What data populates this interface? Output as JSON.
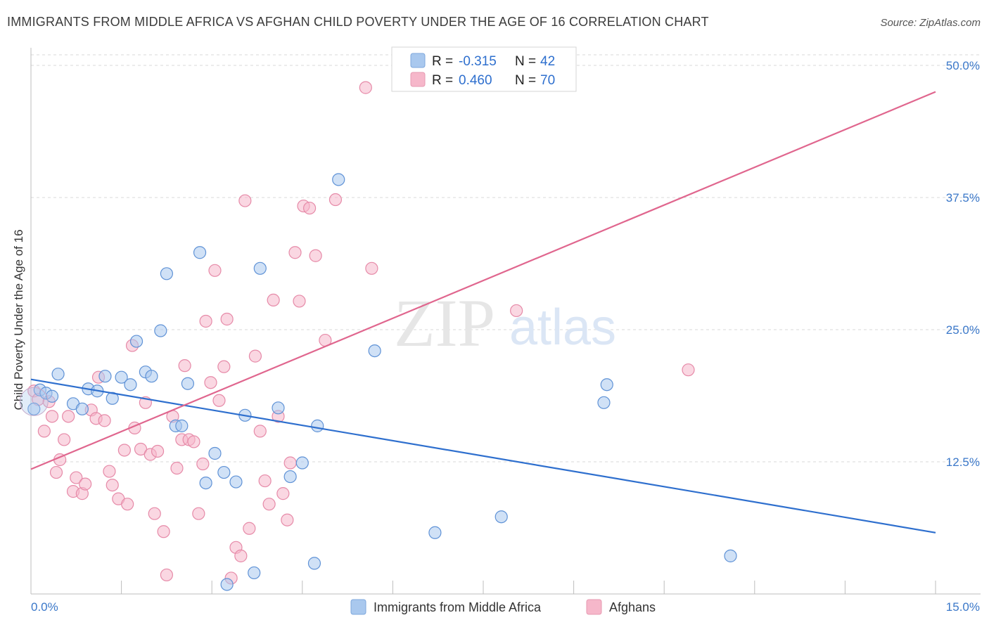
{
  "title": "IMMIGRANTS FROM MIDDLE AFRICA VS AFGHAN CHILD POVERTY UNDER THE AGE OF 16 CORRELATION CHART",
  "source": "Source: ZipAtlas.com",
  "colors": {
    "blue": "#2e6fce",
    "blue_fill": "#a9c8ee",
    "pink": "#e0668e",
    "pink_fill": "#f6b7ca",
    "grid": "#d9d9d9",
    "tick_text": "#3b78c9"
  },
  "legend_top": [
    {
      "r_label": "R = ",
      "r_value": "-0.315",
      "n_label": "N = ",
      "n_value": "42"
    },
    {
      "r_label": "R = ",
      "r_value": "0.460",
      "n_label": "N = ",
      "n_value": "70"
    }
  ],
  "watermark": {
    "zip": "ZIP",
    "atlas": "atlas"
  },
  "chart_data": {
    "type": "scatter",
    "title": "IMMIGRANTS FROM MIDDLE AFRICA VS AFGHAN CHILD POVERTY UNDER THE AGE OF 16 CORRELATION CHART",
    "xlabel": "",
    "ylabel": "Child Poverty Under the Age of 16",
    "xlim": [
      0,
      15
    ],
    "ylim": [
      0,
      51
    ],
    "x_tick_labels": [
      "0.0%",
      "15.0%"
    ],
    "y_ticks": [
      12.5,
      25.0,
      37.5,
      50.0
    ],
    "y_tick_labels": [
      "12.5%",
      "25.0%",
      "37.5%",
      "50.0%"
    ],
    "grid": true,
    "legend_placement": "top-center and bottom",
    "series": [
      {
        "name": "Immigrants from Middle Africa",
        "r": -0.315,
        "n": 42,
        "trend": {
          "x": [
            0,
            15
          ],
          "y": [
            20.3,
            5.8
          ]
        },
        "points": [
          [
            0.05,
            17.5
          ],
          [
            0.15,
            19.3
          ],
          [
            0.25,
            19.0
          ],
          [
            0.35,
            18.7
          ],
          [
            0.45,
            20.8
          ],
          [
            0.7,
            18.0
          ],
          [
            0.85,
            17.5
          ],
          [
            0.95,
            19.4
          ],
          [
            1.1,
            19.2
          ],
          [
            1.23,
            20.6
          ],
          [
            1.35,
            18.5
          ],
          [
            1.5,
            20.5
          ],
          [
            1.65,
            19.8
          ],
          [
            1.75,
            23.9
          ],
          [
            1.9,
            21.0
          ],
          [
            2.0,
            20.6
          ],
          [
            2.15,
            24.9
          ],
          [
            2.25,
            30.3
          ],
          [
            2.4,
            15.9
          ],
          [
            2.5,
            15.9
          ],
          [
            2.6,
            19.9
          ],
          [
            2.8,
            32.3
          ],
          [
            2.9,
            10.5
          ],
          [
            3.05,
            13.3
          ],
          [
            3.2,
            11.5
          ],
          [
            3.25,
            0.9
          ],
          [
            3.4,
            10.6
          ],
          [
            3.55,
            16.9
          ],
          [
            3.7,
            2.0
          ],
          [
            3.8,
            30.8
          ],
          [
            4.1,
            17.6
          ],
          [
            4.3,
            11.1
          ],
          [
            4.5,
            12.4
          ],
          [
            4.7,
            2.9
          ],
          [
            4.75,
            15.9
          ],
          [
            5.1,
            39.2
          ],
          [
            5.7,
            23.0
          ],
          [
            6.7,
            5.8
          ],
          [
            7.8,
            7.3
          ],
          [
            9.5,
            18.1
          ],
          [
            9.55,
            19.8
          ],
          [
            11.6,
            3.6
          ]
        ]
      },
      {
        "name": "Afghans",
        "r": 0.46,
        "n": 70,
        "trend": {
          "x": [
            0,
            15
          ],
          "y": [
            11.8,
            47.5
          ]
        },
        "points": [
          [
            0.05,
            19.2
          ],
          [
            0.12,
            18.4
          ],
          [
            0.22,
            15.4
          ],
          [
            0.35,
            16.8
          ],
          [
            0.42,
            11.5
          ],
          [
            0.48,
            12.7
          ],
          [
            0.55,
            14.6
          ],
          [
            0.62,
            16.8
          ],
          [
            0.7,
            9.7
          ],
          [
            0.75,
            11.0
          ],
          [
            0.85,
            9.5
          ],
          [
            0.9,
            10.4
          ],
          [
            1.0,
            17.4
          ],
          [
            1.08,
            16.6
          ],
          [
            1.12,
            20.5
          ],
          [
            1.22,
            16.4
          ],
          [
            1.3,
            11.6
          ],
          [
            1.35,
            10.3
          ],
          [
            1.45,
            9.0
          ],
          [
            1.55,
            13.6
          ],
          [
            1.6,
            8.5
          ],
          [
            1.68,
            23.5
          ],
          [
            1.72,
            15.7
          ],
          [
            1.82,
            13.7
          ],
          [
            1.9,
            18.1
          ],
          [
            1.98,
            13.2
          ],
          [
            2.05,
            7.6
          ],
          [
            2.1,
            13.5
          ],
          [
            2.2,
            5.9
          ],
          [
            2.25,
            1.8
          ],
          [
            2.35,
            16.8
          ],
          [
            2.42,
            11.9
          ],
          [
            2.5,
            14.6
          ],
          [
            2.55,
            21.6
          ],
          [
            2.62,
            14.6
          ],
          [
            2.7,
            14.4
          ],
          [
            2.78,
            7.6
          ],
          [
            2.85,
            12.3
          ],
          [
            2.9,
            25.8
          ],
          [
            2.98,
            20.0
          ],
          [
            3.05,
            30.6
          ],
          [
            3.12,
            18.3
          ],
          [
            3.2,
            21.5
          ],
          [
            3.25,
            26.0
          ],
          [
            3.32,
            1.5
          ],
          [
            3.4,
            4.4
          ],
          [
            3.48,
            3.6
          ],
          [
            3.55,
            37.2
          ],
          [
            3.62,
            6.2
          ],
          [
            3.72,
            22.5
          ],
          [
            3.8,
            15.4
          ],
          [
            3.88,
            10.7
          ],
          [
            3.95,
            8.5
          ],
          [
            4.02,
            27.8
          ],
          [
            4.1,
            16.8
          ],
          [
            4.18,
            9.5
          ],
          [
            4.25,
            7.0
          ],
          [
            4.3,
            12.4
          ],
          [
            4.38,
            32.3
          ],
          [
            4.45,
            27.7
          ],
          [
            4.52,
            36.7
          ],
          [
            4.62,
            36.5
          ],
          [
            4.72,
            32.0
          ],
          [
            4.88,
            24.0
          ],
          [
            5.05,
            37.3
          ],
          [
            5.55,
            47.9
          ],
          [
            5.65,
            30.8
          ],
          [
            8.05,
            26.8
          ],
          [
            10.9,
            21.2
          ],
          [
            0.3,
            18.2
          ]
        ]
      }
    ]
  },
  "bottom_legend": [
    {
      "label": "Immigrants from Middle Africa"
    },
    {
      "label": "Afghans"
    }
  ]
}
